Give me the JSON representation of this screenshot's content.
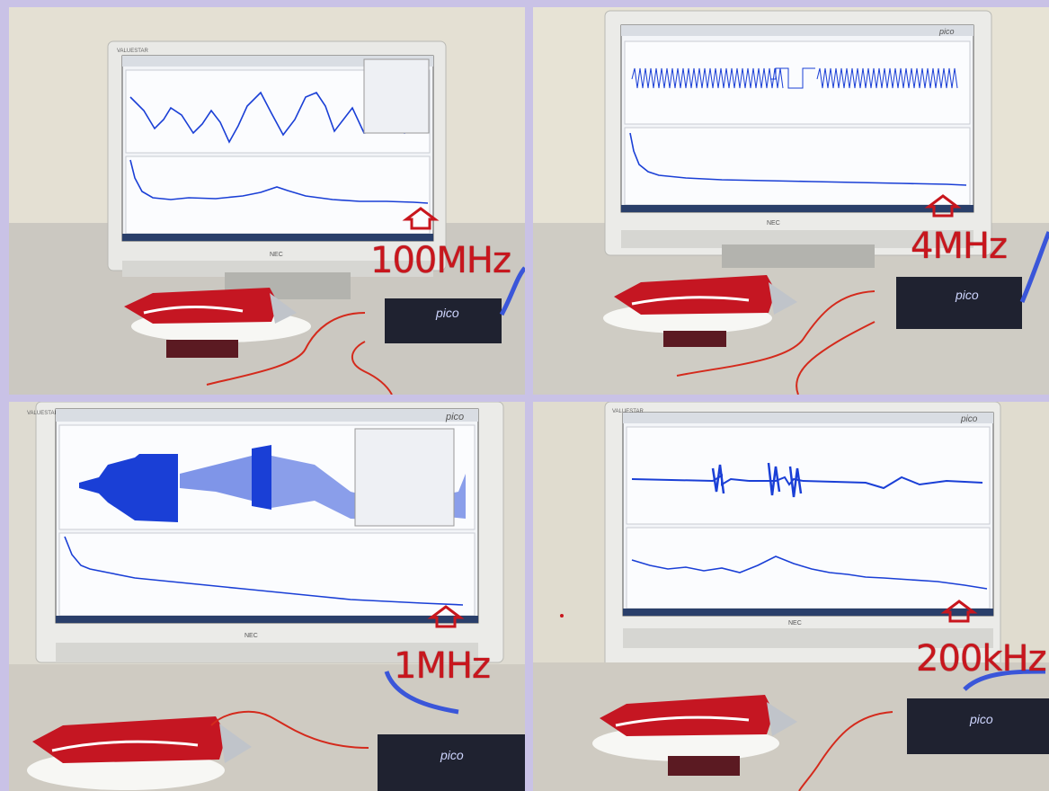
{
  "panels": [
    {
      "id": "top-left",
      "frequency_label": "100MHz"
    },
    {
      "id": "top-right",
      "frequency_label": "4MHz"
    },
    {
      "id": "bottom-left",
      "frequency_label": "1MHz"
    },
    {
      "id": "bottom-right",
      "frequency_label": "200kHz"
    }
  ],
  "monitor": {
    "model_label": "VALUESTAR",
    "brand_label": "NEC"
  },
  "scope": {
    "brand_label": "pico"
  },
  "colors": {
    "label_red": "#c8161d",
    "trace_blue": "#1a3fd6",
    "background_lavender": "#c9c2e6"
  }
}
